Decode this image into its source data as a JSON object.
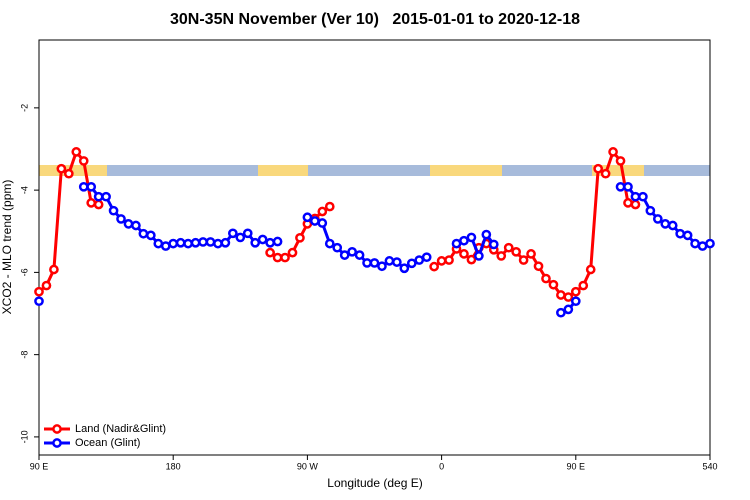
{
  "chart_data": {
    "type": "line",
    "title": "30N-35N November (Ver 10)   2015-01-01 to 2020-12-18",
    "xlabel": "Longitude (deg E)",
    "ylabel": "XCO2 - MLO trend (ppm)",
    "x": [
      90,
      95,
      100,
      105,
      110,
      115,
      120,
      125,
      130,
      135,
      140,
      145,
      150,
      155,
      160,
      165,
      170,
      175,
      180,
      185,
      190,
      195,
      200,
      205,
      210,
      215,
      220,
      225,
      230,
      235,
      240,
      245,
      250,
      255,
      260,
      265,
      270,
      275,
      280,
      285,
      290,
      295,
      300,
      305,
      310,
      315,
      320,
      325,
      330,
      335,
      340,
      345,
      350,
      355,
      360,
      365,
      370,
      375,
      380,
      385,
      390,
      395,
      400,
      405,
      410,
      415,
      420,
      425,
      430,
      435,
      440,
      445,
      450,
      455,
      460,
      465,
      470,
      475,
      480,
      485,
      490,
      495,
      500,
      505,
      510,
      515,
      520,
      525,
      530,
      535,
      540
    ],
    "series": [
      {
        "name": "Land (Nadir&Glint)",
        "color": "#ff0000",
        "values": [
          -6.47,
          -6.32,
          -5.93,
          -3.48,
          -3.6,
          -3.07,
          -3.29,
          -4.31,
          -4.35,
          null,
          null,
          null,
          null,
          null,
          null,
          null,
          null,
          null,
          null,
          null,
          null,
          null,
          null,
          null,
          null,
          null,
          null,
          null,
          null,
          null,
          null,
          -5.52,
          -5.64,
          -5.64,
          -5.52,
          -5.16,
          -4.82,
          -4.69,
          -4.52,
          -4.4,
          null,
          null,
          null,
          null,
          null,
          null,
          null,
          null,
          null,
          null,
          null,
          null,
          null,
          -5.86,
          -5.72,
          -5.7,
          -5.43,
          -5.55,
          -5.69,
          -5.4,
          -5.3,
          -5.45,
          -5.6,
          -5.4,
          -5.5,
          -5.7,
          -5.55,
          -5.85,
          -6.15,
          -6.3,
          -6.55,
          -6.6,
          -6.47,
          -6.32,
          -5.93,
          -3.48,
          -3.6,
          -3.07,
          -3.29,
          -4.31,
          -4.35,
          null,
          null,
          null,
          null,
          null,
          null,
          null,
          null,
          null,
          null
        ]
      },
      {
        "name": "Ocean (Glint)",
        "color": "#0000ff",
        "values": [
          -6.7,
          null,
          null,
          null,
          null,
          null,
          -3.92,
          -3.92,
          -4.16,
          -4.16,
          -4.5,
          -4.7,
          -4.82,
          -4.86,
          -5.06,
          -5.1,
          -5.3,
          -5.36,
          -5.3,
          -5.28,
          -5.3,
          -5.28,
          -5.26,
          -5.26,
          -5.3,
          -5.28,
          -5.05,
          -5.15,
          -5.05,
          -5.28,
          -5.2,
          -5.28,
          -5.25,
          null,
          null,
          null,
          -4.66,
          -4.75,
          -4.8,
          -5.3,
          -5.4,
          -5.58,
          -5.5,
          -5.58,
          -5.77,
          -5.77,
          -5.85,
          -5.72,
          -5.75,
          -5.9,
          -5.78,
          -5.7,
          -5.63,
          null,
          null,
          null,
          -5.3,
          -5.23,
          -5.15,
          -5.6,
          -5.08,
          -5.32,
          null,
          null,
          null,
          null,
          null,
          null,
          null,
          null,
          -6.98,
          -6.9,
          -6.7,
          null,
          null,
          null,
          null,
          null,
          -3.92,
          -3.92,
          -4.16,
          -4.16,
          -4.5,
          -4.7,
          -4.82,
          -4.86,
          -5.06,
          -5.1,
          -5.3,
          -5.36,
          -5.3
        ]
      }
    ],
    "xlim": [
      90,
      540
    ],
    "xticks": [
      {
        "value": 90,
        "label": "90 E"
      },
      180,
      {
        "value": 270,
        "label": "90 W"
      },
      {
        "value": 360,
        "label": "0"
      },
      {
        "value": 450,
        "label": "90 E"
      },
      540
    ],
    "ylim": [
      -10.44,
      -0.35
    ],
    "yticks": [
      -2,
      -4,
      -6,
      -8,
      -10
    ],
    "legend": "lower left"
  }
}
